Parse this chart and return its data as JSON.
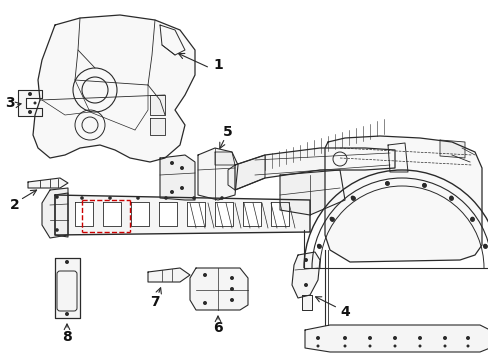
{
  "bg_color": "#ffffff",
  "lc": "#2a2a2a",
  "rc": "#cc0000",
  "figsize": [
    4.89,
    3.6
  ],
  "dpi": 100,
  "xlim": [
    0,
    489
  ],
  "ylim": [
    0,
    360
  ]
}
